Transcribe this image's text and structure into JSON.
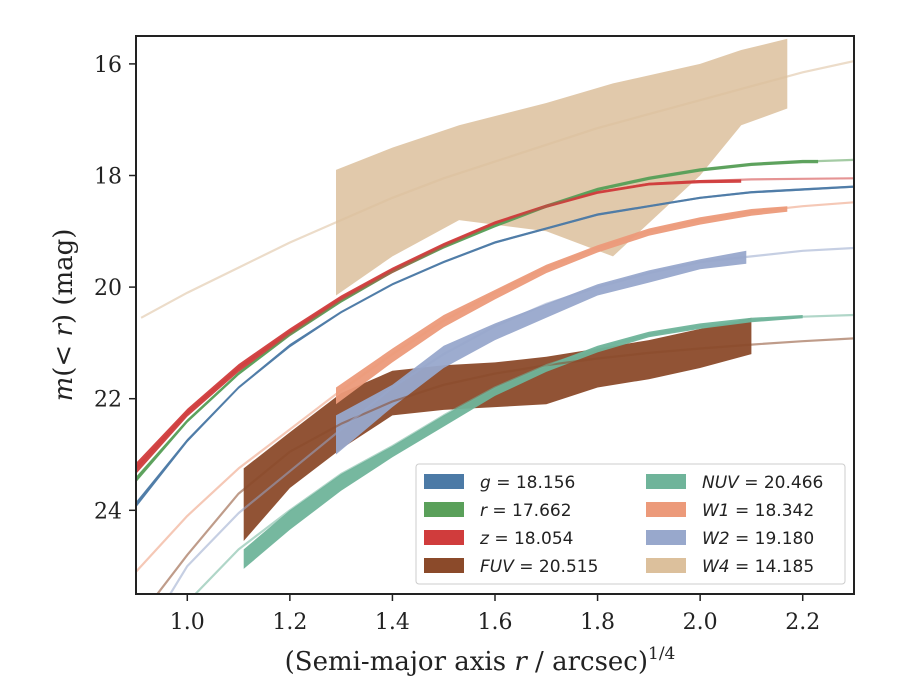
{
  "chart_data": {
    "type": "line",
    "title": "",
    "xlabel_main": "(Semi-major axis ",
    "xlabel_var": "r",
    "xlabel_unit": " / arcsec)",
    "xlabel_exp": "1/4",
    "ylabel_pre": "m(",
    "ylabel_var": "< r",
    "ylabel_post": ") (mag)",
    "xlim": [
      0.9,
      2.3
    ],
    "ylim": [
      25.5,
      15.5
    ],
    "y_inverted": true,
    "xticks": [
      1.0,
      1.2,
      1.4,
      1.6,
      1.8,
      2.0,
      2.2
    ],
    "xtick_labels": [
      "1.0",
      "1.2",
      "1.4",
      "1.6",
      "1.8",
      "2.0",
      "2.2"
    ],
    "yticks": [
      16,
      18,
      20,
      22,
      24
    ],
    "ytick_labels": [
      "16",
      "18",
      "20",
      "22",
      "24"
    ],
    "grid": false,
    "legend_position": "lower-right",
    "legend_columns": 2,
    "series": [
      {
        "name": "g",
        "legend_label": "= 18.156",
        "color": "#4c7aa6",
        "model": [
          [
            0.9,
            23.9
          ],
          [
            1.0,
            22.75
          ],
          [
            1.1,
            21.8
          ],
          [
            1.2,
            21.05
          ],
          [
            1.3,
            20.45
          ],
          [
            1.4,
            19.95
          ],
          [
            1.5,
            19.55
          ],
          [
            1.6,
            19.2
          ],
          [
            1.7,
            18.95
          ],
          [
            1.8,
            18.7
          ],
          [
            1.9,
            18.55
          ],
          [
            2.0,
            18.4
          ],
          [
            2.1,
            18.3
          ],
          [
            2.2,
            18.25
          ],
          [
            2.3,
            18.2
          ]
        ],
        "band_x": [
          0.9,
          1.0,
          1.1,
          1.2,
          1.3,
          1.4,
          1.5,
          1.6,
          1.7,
          1.8,
          1.9,
          2.0,
          2.1,
          2.2,
          2.3
        ],
        "band_upper": [
          23.85,
          22.72,
          21.78,
          21.02,
          20.43,
          19.93,
          19.53,
          19.18,
          18.93,
          18.68,
          18.53,
          18.38,
          18.28,
          18.23,
          18.18
        ],
        "band_lower": [
          23.95,
          22.78,
          21.82,
          21.08,
          20.47,
          19.97,
          19.57,
          19.22,
          18.97,
          18.72,
          18.57,
          18.42,
          18.32,
          18.27,
          18.22
        ]
      },
      {
        "name": "r",
        "legend_label": "= 17.662",
        "color": "#5aa05a",
        "model": [
          [
            0.9,
            23.45
          ],
          [
            1.0,
            22.4
          ],
          [
            1.1,
            21.55
          ],
          [
            1.2,
            20.85
          ],
          [
            1.3,
            20.25
          ],
          [
            1.4,
            19.72
          ],
          [
            1.5,
            19.28
          ],
          [
            1.6,
            18.9
          ],
          [
            1.7,
            18.55
          ],
          [
            1.8,
            18.25
          ],
          [
            1.9,
            18.05
          ],
          [
            2.0,
            17.9
          ],
          [
            2.1,
            17.8
          ],
          [
            2.2,
            17.75
          ],
          [
            2.3,
            17.72
          ]
        ],
        "band_x": [
          0.9,
          1.0,
          1.1,
          1.2,
          1.3,
          1.4,
          1.5,
          1.6,
          1.7,
          1.8,
          1.9,
          2.0,
          2.1,
          2.2,
          2.23
        ],
        "band_upper": [
          23.4,
          22.37,
          21.52,
          20.82,
          20.22,
          19.69,
          19.25,
          18.87,
          18.52,
          18.22,
          18.02,
          17.87,
          17.77,
          17.72,
          17.72
        ],
        "band_lower": [
          23.5,
          22.43,
          21.58,
          20.88,
          20.28,
          19.75,
          19.31,
          18.93,
          18.58,
          18.28,
          18.08,
          17.93,
          17.83,
          17.78,
          17.78
        ]
      },
      {
        "name": "z",
        "legend_label": "= 18.054",
        "color": "#d03c3c",
        "model": [
          [
            0.9,
            23.25
          ],
          [
            1.0,
            22.25
          ],
          [
            1.1,
            21.45
          ],
          [
            1.2,
            20.8
          ],
          [
            1.3,
            20.2
          ],
          [
            1.4,
            19.7
          ],
          [
            1.5,
            19.25
          ],
          [
            1.6,
            18.85
          ],
          [
            1.7,
            18.55
          ],
          [
            1.8,
            18.3
          ],
          [
            1.9,
            18.15
          ],
          [
            2.0,
            18.1
          ],
          [
            2.1,
            18.07
          ],
          [
            2.2,
            18.06
          ],
          [
            2.3,
            18.05
          ]
        ],
        "band_x": [
          0.9,
          1.0,
          1.1,
          1.2,
          1.3,
          1.4,
          1.5,
          1.6,
          1.7,
          1.8,
          1.9,
          2.0,
          2.08
        ],
        "band_upper": [
          23.15,
          22.18,
          21.38,
          20.74,
          20.15,
          19.65,
          19.21,
          18.82,
          18.52,
          18.28,
          18.13,
          18.08,
          18.07
        ],
        "band_lower": [
          23.35,
          22.32,
          21.52,
          20.86,
          20.25,
          19.75,
          19.29,
          18.88,
          18.58,
          18.33,
          18.18,
          18.14,
          18.13
        ]
      },
      {
        "name": "FUV",
        "legend_label": "= 20.515",
        "color": "#8b4a2a",
        "model": [
          [
            0.9,
            26.0
          ],
          [
            1.0,
            24.8
          ],
          [
            1.1,
            23.7
          ],
          [
            1.2,
            22.95
          ],
          [
            1.3,
            22.45
          ],
          [
            1.4,
            22.05
          ],
          [
            1.5,
            21.75
          ],
          [
            1.6,
            21.55
          ],
          [
            1.7,
            21.4
          ],
          [
            1.8,
            21.28
          ],
          [
            1.9,
            21.18
          ],
          [
            2.0,
            21.1
          ],
          [
            2.1,
            21.03
          ],
          [
            2.2,
            20.97
          ],
          [
            2.3,
            20.92
          ]
        ],
        "band_x": [
          1.11,
          1.2,
          1.3,
          1.4,
          1.5,
          1.6,
          1.7,
          1.8,
          1.9,
          2.0,
          2.1
        ],
        "band_upper": [
          23.25,
          22.6,
          21.9,
          21.5,
          21.4,
          21.35,
          21.25,
          21.1,
          20.95,
          20.75,
          20.55
        ],
        "band_lower": [
          24.55,
          23.6,
          22.9,
          22.3,
          22.2,
          22.15,
          22.1,
          21.8,
          21.65,
          21.45,
          21.2
        ]
      },
      {
        "name": "NUV",
        "legend_label": "= 20.466",
        "color": "#6fb49a",
        "model": [
          [
            0.9,
            27.0
          ],
          [
            1.0,
            25.65
          ],
          [
            1.1,
            24.7
          ],
          [
            1.2,
            24.0
          ],
          [
            1.3,
            23.35
          ],
          [
            1.4,
            22.85
          ],
          [
            1.5,
            22.3
          ],
          [
            1.6,
            21.8
          ],
          [
            1.7,
            21.4
          ],
          [
            1.8,
            21.1
          ],
          [
            1.9,
            20.85
          ],
          [
            2.0,
            20.7
          ],
          [
            2.1,
            20.6
          ],
          [
            2.2,
            20.53
          ],
          [
            2.3,
            20.5
          ]
        ],
        "band_x": [
          1.11,
          1.2,
          1.3,
          1.4,
          1.5,
          1.6,
          1.7,
          1.8,
          1.9,
          2.0,
          2.1,
          2.2
        ],
        "band_upper": [
          24.7,
          24.0,
          23.35,
          22.85,
          22.3,
          21.8,
          21.4,
          21.05,
          20.8,
          20.65,
          20.55,
          20.5
        ],
        "band_lower": [
          25.05,
          24.35,
          23.65,
          23.05,
          22.5,
          21.95,
          21.52,
          21.17,
          20.9,
          20.75,
          20.63,
          20.56
        ]
      },
      {
        "name": "W1",
        "legend_label": "= 18.342",
        "color": "#ec9a7a",
        "model": [
          [
            0.9,
            25.1
          ],
          [
            1.0,
            24.1
          ],
          [
            1.1,
            23.25
          ],
          [
            1.2,
            22.55
          ],
          [
            1.3,
            21.85
          ],
          [
            1.4,
            21.2
          ],
          [
            1.5,
            20.6
          ],
          [
            1.6,
            20.1
          ],
          [
            1.7,
            19.65
          ],
          [
            1.8,
            19.3
          ],
          [
            1.9,
            19.0
          ],
          [
            2.0,
            18.8
          ],
          [
            2.1,
            18.65
          ],
          [
            2.2,
            18.55
          ],
          [
            2.3,
            18.48
          ]
        ],
        "band_x": [
          1.29,
          1.4,
          1.5,
          1.6,
          1.7,
          1.8,
          1.9,
          2.0,
          2.1,
          2.17
        ],
        "band_upper": [
          21.8,
          21.1,
          20.5,
          20.05,
          19.6,
          19.25,
          18.95,
          18.75,
          18.6,
          18.55
        ],
        "band_lower": [
          22.1,
          21.35,
          20.72,
          20.22,
          19.75,
          19.38,
          19.08,
          18.88,
          18.72,
          18.65
        ]
      },
      {
        "name": "W2",
        "legend_label": "= 19.180",
        "color": "#98a8cc",
        "model": [
          [
            0.9,
            26.5
          ],
          [
            1.0,
            25.0
          ],
          [
            1.1,
            24.05
          ],
          [
            1.2,
            23.3
          ],
          [
            1.3,
            22.55
          ],
          [
            1.4,
            21.8
          ],
          [
            1.5,
            21.2
          ],
          [
            1.6,
            20.7
          ],
          [
            1.7,
            20.3
          ],
          [
            1.8,
            20.0
          ],
          [
            1.9,
            19.75
          ],
          [
            2.0,
            19.55
          ],
          [
            2.1,
            19.45
          ],
          [
            2.2,
            19.35
          ],
          [
            2.3,
            19.3
          ]
        ],
        "band_x": [
          1.29,
          1.4,
          1.5,
          1.6,
          1.7,
          1.8,
          1.9,
          2.0,
          2.09
        ],
        "band_upper": [
          22.3,
          21.75,
          21.05,
          20.65,
          20.3,
          19.95,
          19.7,
          19.5,
          19.35
        ],
        "band_lower": [
          23.0,
          22.15,
          21.45,
          20.95,
          20.55,
          20.15,
          19.92,
          19.68,
          19.58
        ]
      },
      {
        "name": "W4",
        "legend_label": "= 14.185",
        "color": "#dcc09c",
        "model": [
          [
            0.91,
            20.55
          ],
          [
            1.0,
            20.1
          ],
          [
            1.1,
            19.65
          ],
          [
            1.2,
            19.2
          ],
          [
            1.3,
            18.8
          ],
          [
            1.4,
            18.4
          ],
          [
            1.5,
            18.05
          ],
          [
            1.6,
            17.75
          ],
          [
            1.7,
            17.45
          ],
          [
            1.8,
            17.15
          ],
          [
            1.9,
            16.9
          ],
          [
            2.0,
            16.65
          ],
          [
            2.1,
            16.4
          ],
          [
            2.2,
            16.15
          ],
          [
            2.3,
            15.95
          ]
        ],
        "band_x": [
          1.29,
          1.4,
          1.53,
          1.7,
          1.83,
          2.0,
          2.08,
          2.17
        ],
        "band_upper": [
          17.9,
          17.5,
          17.1,
          16.7,
          16.35,
          16.0,
          15.75,
          15.55
        ],
        "band_lower": [
          20.15,
          19.45,
          18.8,
          19.0,
          19.45,
          18.0,
          17.1,
          16.8
        ]
      }
    ]
  }
}
